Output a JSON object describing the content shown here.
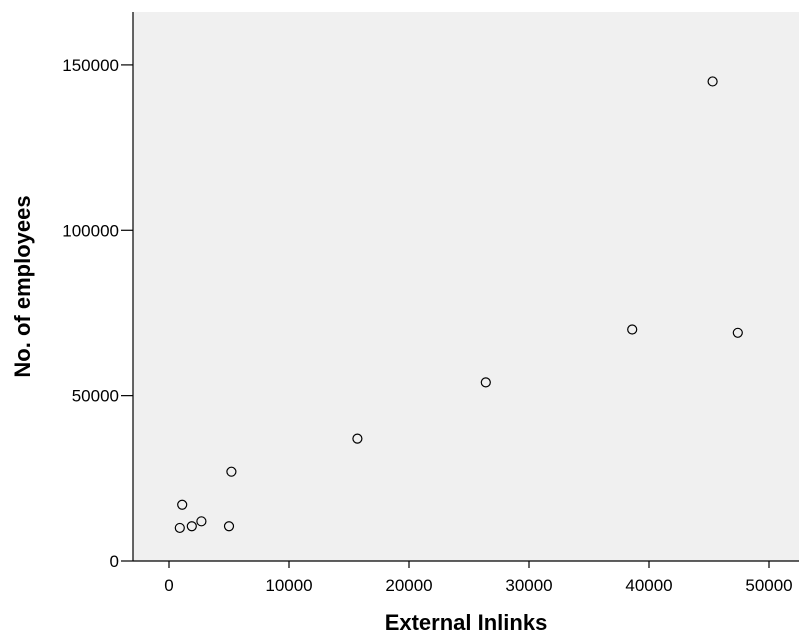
{
  "chart_data": {
    "type": "scatter",
    "title": "",
    "xlabel": "External Inlinks",
    "ylabel": "No. of employees",
    "xlim": [
      -3000,
      52500
    ],
    "ylim": [
      0,
      166000
    ],
    "xticks": [
      0,
      10000,
      20000,
      30000,
      40000,
      50000
    ],
    "yticks": [
      0,
      50000,
      100000,
      150000
    ],
    "xtick_labels": [
      "0",
      "10000",
      "20000",
      "30000",
      "40000",
      "50000"
    ],
    "ytick_labels": [
      "0",
      "50000",
      "100000",
      "150000"
    ],
    "grid": false,
    "legend": "none",
    "series": [
      {
        "points": [
          {
            "x": 900,
            "y": 10000
          },
          {
            "x": 1100,
            "y": 17000
          },
          {
            "x": 1900,
            "y": 10500
          },
          {
            "x": 2700,
            "y": 12000
          },
          {
            "x": 5000,
            "y": 10500
          },
          {
            "x": 5200,
            "y": 27000
          },
          {
            "x": 15700,
            "y": 37000
          },
          {
            "x": 26400,
            "y": 54000
          },
          {
            "x": 38600,
            "y": 70000
          },
          {
            "x": 45300,
            "y": 145000
          },
          {
            "x": 47400,
            "y": 69000
          }
        ]
      }
    ],
    "colors": {
      "plot_background": "#f0f0f0",
      "marker_stroke": "#000000",
      "marker_fill": "#f0f0f0",
      "axis": "#000000"
    }
  }
}
